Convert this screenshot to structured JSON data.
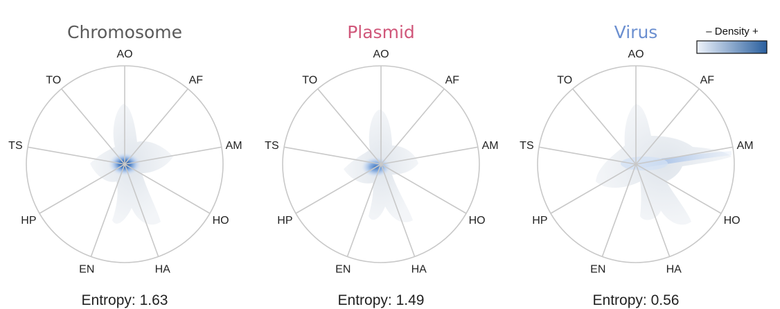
{
  "chart_data": [
    {
      "type": "radar-density",
      "title": "Chromosome",
      "title_color": "#5a5a5a",
      "axes": [
        "AO",
        "AF",
        "AM",
        "HO",
        "HA",
        "EN",
        "HP",
        "TS",
        "TO"
      ],
      "entropy_text": "Entropy: 1.63",
      "entropy": 1.63
    },
    {
      "type": "radar-density",
      "title": "Plasmid",
      "title_color": "#d0577a",
      "axes": [
        "AO",
        "AF",
        "AM",
        "HO",
        "HA",
        "EN",
        "HP",
        "TS",
        "TO"
      ],
      "entropy_text": "Entropy: 1.49",
      "entropy": 1.49
    },
    {
      "type": "radar-density",
      "title": "Virus",
      "title_color": "#6b8fd0",
      "axes": [
        "AO",
        "AF",
        "AM",
        "HO",
        "HA",
        "EN",
        "HP",
        "TS",
        "TO"
      ],
      "entropy_text": "Entropy: 0.56",
      "entropy": 0.56
    }
  ],
  "legend": {
    "label": "– Density +",
    "color_low": "#eef3fb",
    "color_high": "#2a5f9e"
  },
  "colors": {
    "grid": "#c8c8c8",
    "density_light": "#e6eaef",
    "density_mid": "#a9c4ea",
    "density_dark": "#1f4f8c"
  }
}
